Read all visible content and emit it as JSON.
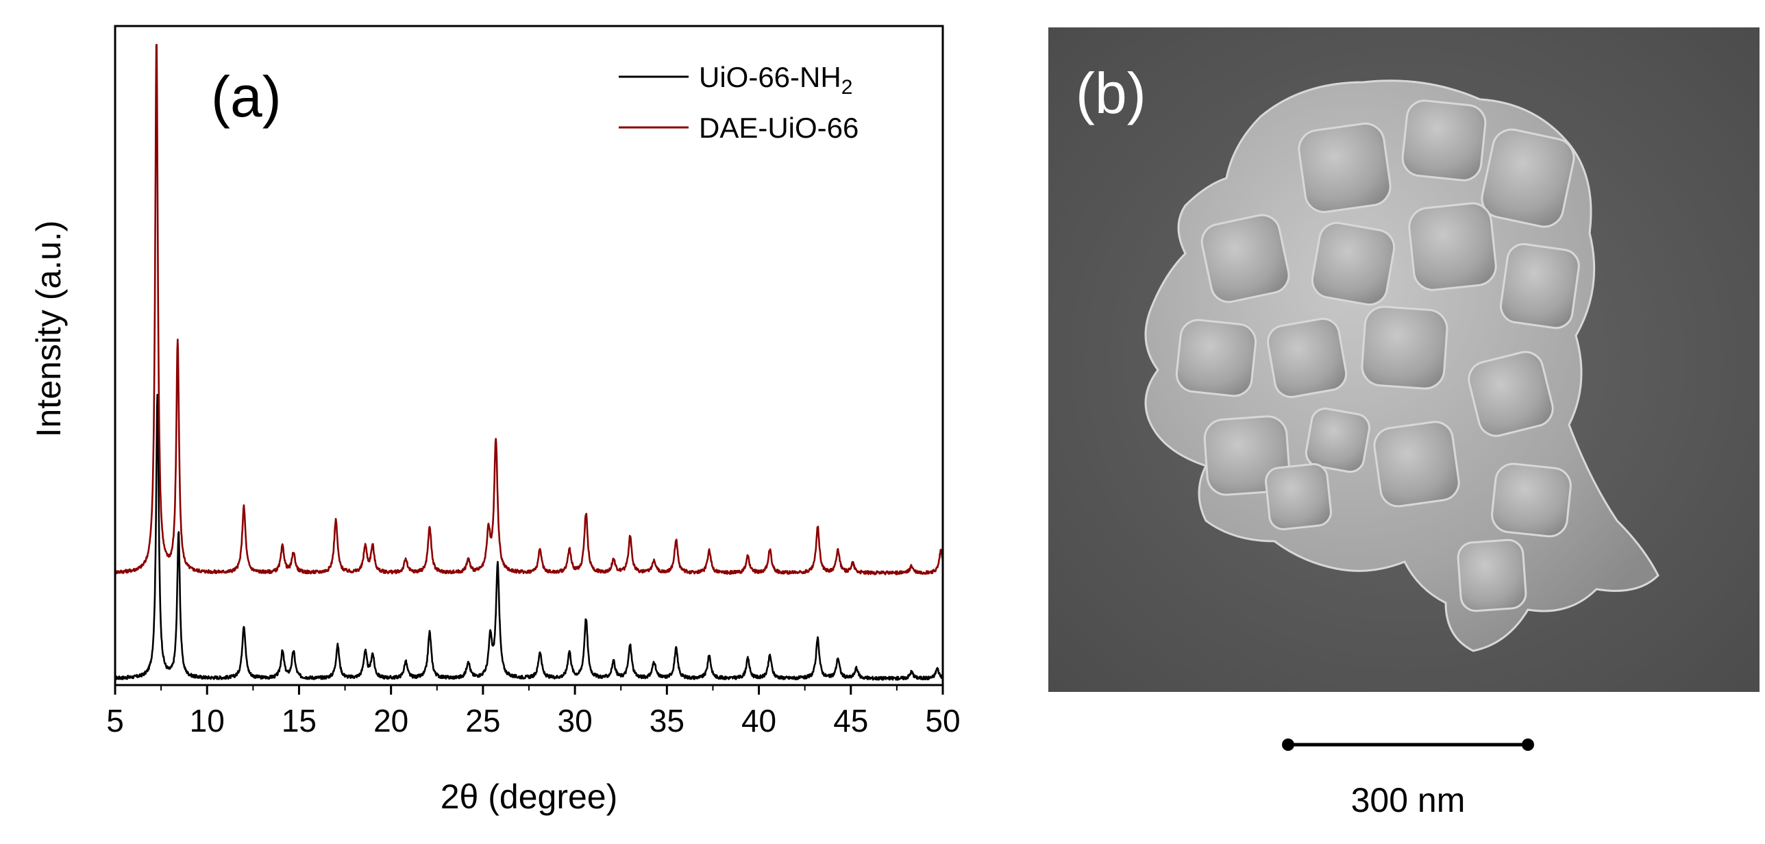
{
  "panel_a": {
    "label": "(a)",
    "xlabel": "2θ (degree)",
    "ylabel": "Intensity (a.u.)"
  },
  "panel_b": {
    "label": "(b)",
    "scale_bar_label": "300 nm"
  },
  "colors": {
    "series_uio66_nh2": "#000000",
    "series_dae_uio66": "#8b0000",
    "sem_background": "#5a5a5a",
    "sem_particle": "#a8a8a8"
  },
  "chart_data": {
    "type": "line",
    "xlabel": "2θ (degree)",
    "ylabel": "Intensity (a.u.)",
    "xlim": [
      5,
      50
    ],
    "ylim": [
      0,
      100
    ],
    "xticks": [
      5,
      10,
      15,
      20,
      25,
      30,
      35,
      40,
      45,
      50
    ],
    "yticks_shown": false,
    "legend_position": "top-right",
    "series": [
      {
        "name": "UiO-66-NH₂",
        "legend_main": "UiO-66-NH",
        "legend_sub": "2",
        "color": "#000000",
        "baseline": 1,
        "peaks": [
          {
            "x": 7.3,
            "h": 43
          },
          {
            "x": 8.45,
            "h": 22
          },
          {
            "x": 12.0,
            "h": 8
          },
          {
            "x": 14.1,
            "h": 4
          },
          {
            "x": 14.7,
            "h": 4
          },
          {
            "x": 17.1,
            "h": 5
          },
          {
            "x": 18.6,
            "h": 4
          },
          {
            "x": 19.0,
            "h": 3.5
          },
          {
            "x": 20.8,
            "h": 2.5
          },
          {
            "x": 22.1,
            "h": 7
          },
          {
            "x": 24.2,
            "h": 2.5
          },
          {
            "x": 25.4,
            "h": 6
          },
          {
            "x": 25.8,
            "h": 17
          },
          {
            "x": 28.1,
            "h": 4
          },
          {
            "x": 29.7,
            "h": 4
          },
          {
            "x": 30.6,
            "h": 9
          },
          {
            "x": 32.1,
            "h": 2.5
          },
          {
            "x": 33.0,
            "h": 5
          },
          {
            "x": 34.3,
            "h": 2.5
          },
          {
            "x": 35.5,
            "h": 4.5
          },
          {
            "x": 37.3,
            "h": 3.5
          },
          {
            "x": 39.4,
            "h": 3
          },
          {
            "x": 40.6,
            "h": 3.5
          },
          {
            "x": 43.2,
            "h": 6
          },
          {
            "x": 44.3,
            "h": 3
          },
          {
            "x": 45.3,
            "h": 1.5
          },
          {
            "x": 48.3,
            "h": 1
          },
          {
            "x": 49.7,
            "h": 1.5
          }
        ]
      },
      {
        "name": "DAE-UiO-66",
        "legend_main": "DAE-UiO-66",
        "legend_sub": "",
        "color": "#8b0000",
        "baseline": 17,
        "peaks": [
          {
            "x": 7.25,
            "h": 81
          },
          {
            "x": 8.4,
            "h": 35
          },
          {
            "x": 12.0,
            "h": 10
          },
          {
            "x": 14.1,
            "h": 4
          },
          {
            "x": 14.7,
            "h": 3
          },
          {
            "x": 17.0,
            "h": 8
          },
          {
            "x": 18.6,
            "h": 4
          },
          {
            "x": 19.0,
            "h": 4
          },
          {
            "x": 20.8,
            "h": 2
          },
          {
            "x": 22.1,
            "h": 7
          },
          {
            "x": 24.2,
            "h": 2
          },
          {
            "x": 25.3,
            "h": 6
          },
          {
            "x": 25.7,
            "h": 20
          },
          {
            "x": 28.1,
            "h": 3.5
          },
          {
            "x": 29.7,
            "h": 3.5
          },
          {
            "x": 30.6,
            "h": 9
          },
          {
            "x": 32.1,
            "h": 2
          },
          {
            "x": 33.0,
            "h": 5.5
          },
          {
            "x": 34.3,
            "h": 2
          },
          {
            "x": 35.5,
            "h": 5
          },
          {
            "x": 37.3,
            "h": 3.5
          },
          {
            "x": 39.4,
            "h": 2.5
          },
          {
            "x": 40.6,
            "h": 3.5
          },
          {
            "x": 43.2,
            "h": 7
          },
          {
            "x": 44.3,
            "h": 3.5
          },
          {
            "x": 45.1,
            "h": 1.5
          },
          {
            "x": 48.3,
            "h": 1
          },
          {
            "x": 49.9,
            "h": 3.5
          }
        ]
      }
    ]
  }
}
